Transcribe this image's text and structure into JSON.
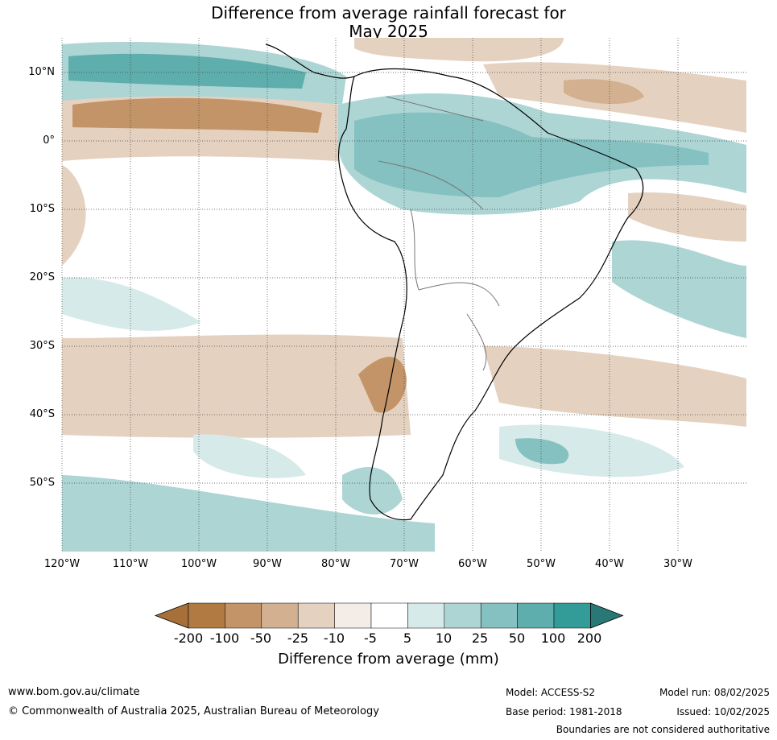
{
  "title_line1": "Difference from average rainfall forecast for",
  "title_line2": "May 2025",
  "lat_labels": [
    "10°N",
    "0°",
    "10°S",
    "20°S",
    "30°S",
    "40°S",
    "50°S"
  ],
  "lon_labels": [
    "120°W",
    "110°W",
    "100°W",
    "90°W",
    "80°W",
    "70°W",
    "60°W",
    "50°W",
    "40°W",
    "30°W"
  ],
  "colorbar": {
    "ticks": [
      "-200",
      "-100",
      "-50",
      "-25",
      "-10",
      "-5",
      "5",
      "10",
      "25",
      "50",
      "100",
      "200"
    ],
    "colors": [
      "#a7703b",
      "#b07a42",
      "#c29468",
      "#d3b08f",
      "#e5d1bf",
      "#f4ece6",
      "#ffffff",
      "#d6eae9",
      "#acd5d4",
      "#84c1c0",
      "#5daeac",
      "#339b98",
      "#2a7876"
    ],
    "title": "Difference from average (mm)"
  },
  "footer": {
    "website": "www.bom.gov.au/climate",
    "copyright": "© Commonwealth of Australia 2025, Australian Bureau of Meteorology",
    "model": "Model: ACCESS-S2",
    "base_period": "Base period: 1981-2018",
    "model_run": "Model run: 08/02/2025",
    "issued": "Issued: 10/02/2025",
    "disclaimer": "Boundaries are not considered authoritative"
  }
}
